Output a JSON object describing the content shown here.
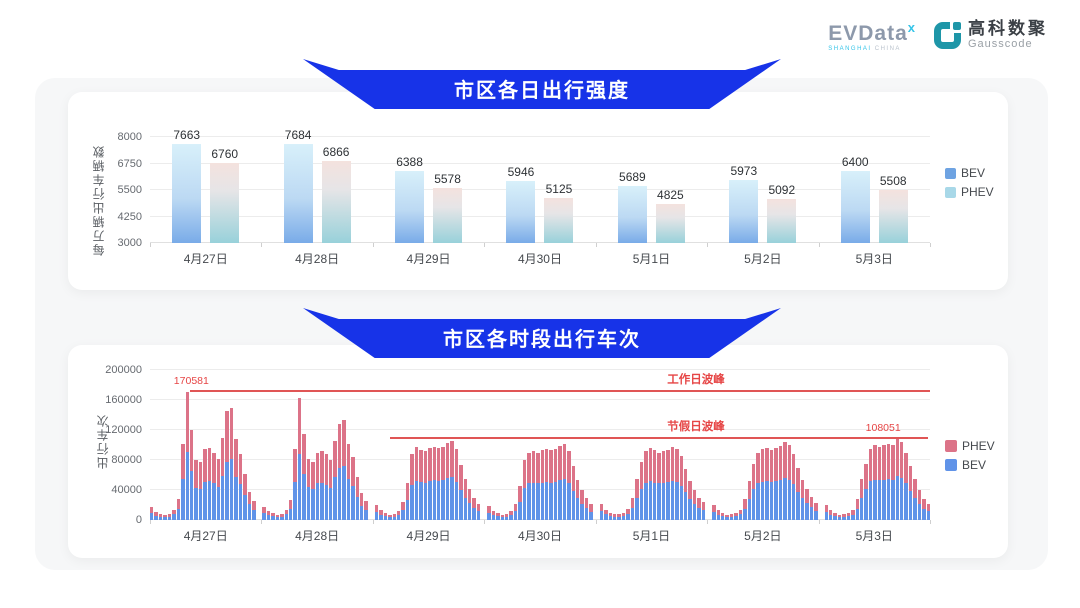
{
  "header": {
    "evdata_logo": {
      "text": "EVData",
      "superscript": "x",
      "subtext": "SHANGHAI CHINA"
    },
    "gausscode_logo": {
      "cn": "高科数聚",
      "en": "Gausscode"
    }
  },
  "colors": {
    "banner_blue": "#1733e8",
    "bev_gradient_top": "#d8f0fa",
    "bev_gradient_bottom": "#79abe8",
    "phev_gradient_top": "#f4e2de",
    "phev_gradient_mid": "#e6e5e7",
    "phev_gradient_bottom": "#98d1da",
    "legend1_bev": "#6ea3e2",
    "legend1_phev": "#a8d8e8",
    "stack_bev_blue": "#6093e8",
    "stack_phev_pink": "#dc7388",
    "annotation_red": "#e05555",
    "annotation_text_red": "#e64545"
  },
  "chart_data": [
    {
      "type": "bar",
      "title": "市区各日出行强度",
      "ylabel": "每万辆出行车辆数",
      "xlabel": "",
      "categories": [
        "4月27日",
        "4月28日",
        "4月29日",
        "4月30日",
        "5月1日",
        "5月2日",
        "5月3日"
      ],
      "series": [
        {
          "name": "BEV",
          "values": [
            7663,
            7684,
            6388,
            5946,
            5689,
            5973,
            6400
          ]
        },
        {
          "name": "PHEV",
          "values": [
            6760,
            6866,
            5578,
            5125,
            4825,
            5092,
            5508
          ]
        }
      ],
      "ylim": [
        3000,
        8000
      ],
      "yticks": [
        3000,
        4250,
        5500,
        6750,
        8000
      ],
      "grid": true,
      "legend_position": "right",
      "legend_order": [
        "BEV",
        "PHEV"
      ]
    },
    {
      "type": "bar",
      "stacked": true,
      "title": "市区各时段出行车次",
      "ylabel": "出行车次",
      "xlabel": "",
      "categories": [
        "4月27日",
        "4月28日",
        "4月29日",
        "4月30日",
        "5月1日",
        "5月2日",
        "5月3日"
      ],
      "bars_per_category": 24,
      "ylim": [
        0,
        200000
      ],
      "yticks": [
        0,
        40000,
        80000,
        120000,
        160000,
        200000
      ],
      "grid": true,
      "legend_position": "right",
      "legend_order": [
        "PHEV",
        "BEV"
      ],
      "series": [
        {
          "name": "BEV",
          "values_by_day": [
            [
              9000,
              6000,
              4500,
              4000,
              4500,
              7500,
              15000,
              55000,
              91000,
              65000,
              43000,
              42000,
              51000,
              52000,
              49000,
              44000,
              59000,
              78000,
              81000,
              58000,
              48000,
              34000,
              21000,
              14000
            ],
            [
              10000,
              6500,
              5000,
              4000,
              4500,
              7500,
              14500,
              51000,
              88000,
              62000,
              44000,
              42000,
              49000,
              50000,
              47000,
              43000,
              57000,
              69000,
              72000,
              55000,
              45000,
              31000,
              19000,
              13000
            ],
            [
              11000,
              7000,
              5000,
              4000,
              4500,
              6500,
              13000,
              27000,
              47000,
              52000,
              51000,
              50000,
              52000,
              53000,
              52000,
              53000,
              56000,
              57000,
              51000,
              40000,
              30000,
              23000,
              16000,
              12000
            ],
            [
              10000,
              6500,
              5000,
              4000,
              4500,
              6500,
              12000,
              24000,
              43000,
              49000,
              50000,
              49000,
              50000,
              51000,
              50000,
              51000,
              53000,
              55000,
              50000,
              39000,
              29000,
              22000,
              16000,
              11000
            ],
            [
              12000,
              7500,
              5500,
              4500,
              4500,
              5500,
              8000,
              16000,
              30000,
              42000,
              50000,
              52000,
              50000,
              49000,
              50000,
              51000,
              52000,
              51000,
              46000,
              37000,
              28000,
              22000,
              16000,
              13000
            ],
            [
              11000,
              7000,
              5000,
              4000,
              4500,
              5500,
              7500,
              15000,
              28000,
              41000,
              49000,
              51000,
              52000,
              51000,
              52000,
              53000,
              56000,
              54000,
              48000,
              38000,
              29000,
              23000,
              17000,
              12000
            ],
            [
              11000,
              7000,
              5000,
              4000,
              4500,
              5500,
              7000,
              15000,
              30000,
              41000,
              52000,
              54000,
              53000,
              54000,
              55000,
              54000,
              59000,
              56000,
              49000,
              39000,
              30000,
              22000,
              15000,
              12000
            ]
          ]
        },
        {
          "name": "PHEV",
          "values_by_day": [
            [
              8000,
              5000,
              3500,
              3000,
              3500,
              6500,
              13000,
              46000,
              79581,
              55000,
              37000,
              35000,
              44000,
              44000,
              41000,
              38000,
              50000,
              67000,
              69000,
              50000,
              40000,
              28000,
              17000,
              12000
            ],
            [
              8000,
              5500,
              4000,
              3000,
              3500,
              6500,
              12500,
              44000,
              75000,
              53000,
              38000,
              36000,
              41000,
              42000,
              41000,
              37000,
              48000,
              59000,
              61000,
              47000,
              39000,
              27000,
              17000,
              12000
            ],
            [
              9000,
              6000,
              4000,
              3000,
              3500,
              5500,
              11000,
              23000,
              41000,
              45000,
              43000,
              42000,
              44000,
              45000,
              44000,
              45000,
              47000,
              48000,
              44000,
              34000,
              25000,
              19000,
              14000,
              10000
            ],
            [
              9000,
              5500,
              4000,
              3000,
              3500,
              5500,
              10000,
              21000,
              37000,
              41000,
              42000,
              41000,
              43000,
              44000,
              43000,
              44000,
              46000,
              46000,
              42000,
              33000,
              25000,
              18000,
              13000,
              10000
            ],
            [
              10000,
              6500,
              4500,
              3500,
              3500,
              4500,
              7000,
              14000,
              25000,
              36000,
              42000,
              44000,
              43000,
              41000,
              42000,
              43000,
              45000,
              44000,
              39000,
              31000,
              24000,
              18000,
              14000,
              11000
            ],
            [
              9000,
              6000,
              4000,
              3000,
              3500,
              4500,
              6500,
              13000,
              24000,
              34000,
              41000,
              44000,
              44000,
              43000,
              44000,
              46000,
              48000,
              46000,
              40000,
              32000,
              25000,
              19000,
              14000,
              11000
            ],
            [
              9000,
              6000,
              4000,
              3000,
              3500,
              4500,
              6000,
              13000,
              25000,
              34000,
              43000,
              46000,
              45000,
              46000,
              47000,
              46000,
              49051,
              48000,
              41000,
              33000,
              25000,
              18000,
              13000,
              10000
            ]
          ]
        }
      ],
      "annotations": [
        {
          "label": "工作日波峰",
          "value": 170581,
          "value_label": "170581",
          "x_start_pct": 5.1,
          "x_end_pct": 100,
          "label_x_pct": 70,
          "value_label_x_pct": 5.3
        },
        {
          "label": "节假日波峰",
          "value": 108051,
          "value_label": "108051",
          "x_start_pct": 30.8,
          "x_end_pct": 99.7,
          "label_x_pct": 70,
          "value_label_x_pct": 94
        }
      ]
    }
  ]
}
